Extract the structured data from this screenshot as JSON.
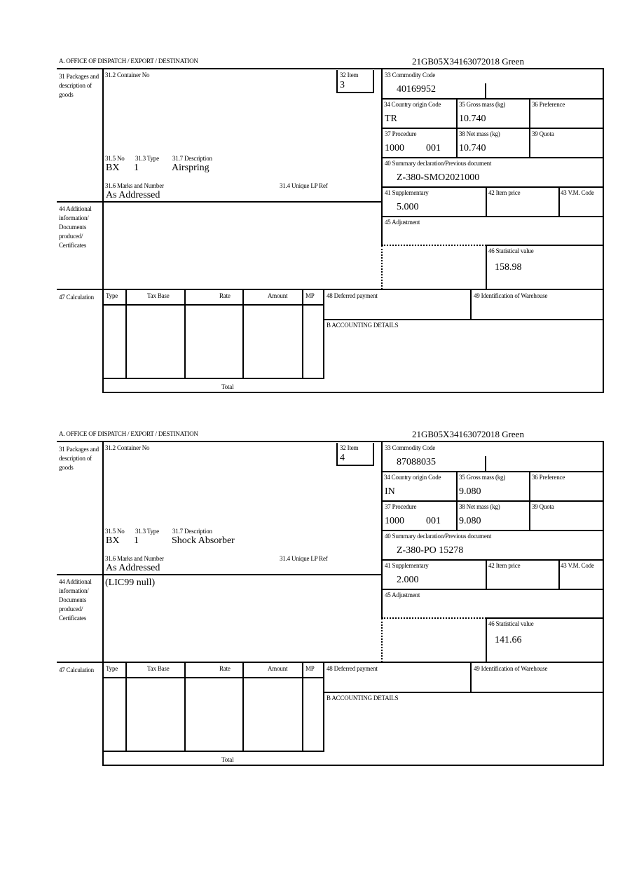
{
  "labels": {
    "office": "A.  OFFICE OF DISPATCH / EXPORT / DESTINATION",
    "packages": "31 Packages and description of goods",
    "container_no": "31.2 Container No",
    "item": "32 Item",
    "commodity_code": "33 Commodity Code",
    "country_origin": "34 Country origin Code",
    "gross_mass": "35 Gross mass (kg)",
    "preference": "36 Preference",
    "procedure": "37 Procedure",
    "net_mass": "38 Net mass (kg)",
    "quota": "39 Quota",
    "summary_declaration": "40 Summary declaration/Previous document",
    "supplementary": "41 Supplementary",
    "item_price": "42 Item price",
    "vm_code": "43 V.M. Code",
    "adjustment": "45 Adjustment",
    "statistical_value": "46 Statistical value",
    "no": "31.5 No",
    "type": "31.3 Type",
    "description": "31.7 Description",
    "marks": "31.6 Marks and Number",
    "unique_lp_ref": "31.4 Unique LP Ref",
    "additional_info": "44 Additional information/ Documents produced/ Certificates",
    "calculation": "47 Calculation",
    "calc_type": "Type",
    "calc_tax_base": "Tax Base",
    "calc_rate": "Rate",
    "calc_amount": "Amount",
    "calc_mp": "MP",
    "deferred_payment": "48 Deferred payment",
    "warehouse": "49 Identification of Warehouse",
    "accounting": "B ACCOUNTING DETAILS",
    "total": "Total"
  },
  "forms": [
    {
      "reference": "21GB05X34163072018    Green",
      "item": "3",
      "commodity_code": "40169952",
      "country_origin": "TR",
      "gross_mass": "10.740",
      "procedure_code": "1000",
      "procedure_extra": "001",
      "net_mass": "10.740",
      "summary_declaration": "Z-380-SMO2021000",
      "supplementary": "5.000",
      "statistical_value": "158.98",
      "no": "BX",
      "type": "1",
      "description": "Airspring",
      "marks": "As Addressed",
      "additional_info": ""
    },
    {
      "reference": "21GB05X34163072018    Green",
      "item": "4",
      "commodity_code": "87088035",
      "country_origin": "IN",
      "gross_mass": "9.080",
      "procedure_code": "1000",
      "procedure_extra": "001",
      "net_mass": "9.080",
      "summary_declaration": "Z-380-PO 15278",
      "supplementary": "2.000",
      "statistical_value": "141.66",
      "no": "BX",
      "type": "1",
      "description": "Shock Absorber",
      "marks": "As Addressed",
      "additional_info": "(LIC99 null)"
    }
  ]
}
